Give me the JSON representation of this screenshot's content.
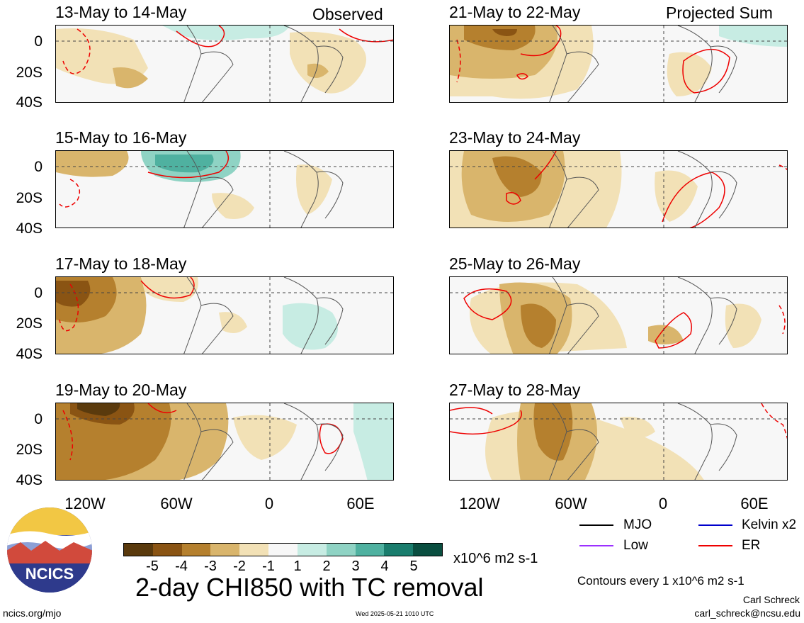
{
  "header": {
    "left_tag": "Observed",
    "right_tag": "Projected Sum"
  },
  "panels_left": [
    {
      "title": "13-May to 14-May"
    },
    {
      "title": "15-May to 16-May"
    },
    {
      "title": "17-May to 18-May"
    },
    {
      "title": "19-May to 20-May"
    }
  ],
  "panels_right": [
    {
      "title": "21-May to 22-May"
    },
    {
      "title": "23-May to 24-May"
    },
    {
      "title": "25-May to 26-May"
    },
    {
      "title": "27-May to 28-May"
    }
  ],
  "lat_labels": [
    "0",
    "20S",
    "40S"
  ],
  "lon_labels": [
    "120W",
    "60W",
    "0",
    "60E"
  ],
  "colorbar": {
    "labels": [
      "-5",
      "-4",
      "-3",
      "-2",
      "-1",
      "1",
      "2",
      "3",
      "4",
      "5"
    ],
    "colors": [
      "#5a3a0d",
      "#8a5413",
      "#b5802e",
      "#d9b56c",
      "#f2e1b6",
      "#f7f7f7",
      "#c7ece3",
      "#8fd3c4",
      "#4fb1a0",
      "#1a7d6d",
      "#0a4e40"
    ],
    "units": "x10^6 m2 s-1"
  },
  "title": "2-day CHI850 with TC removal",
  "legend": [
    {
      "label": "MJO",
      "color": "#000000"
    },
    {
      "label": "Kelvin x2",
      "color": "#0000cc"
    },
    {
      "label": "Low",
      "color": "#9b30ff"
    },
    {
      "label": "ER",
      "color": "#ee0000"
    }
  ],
  "contour_note": "Contours every 1 x10^6 m2 s-1",
  "author": "Carl Schreck",
  "email": "carl_schreck@ncsu.edu",
  "site": "ncics.org/mjo",
  "timestamp": "Wed 2025-05-21 1010 UTC",
  "logo_text": "NCICS"
}
